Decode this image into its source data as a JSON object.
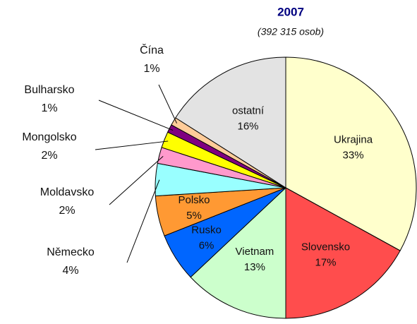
{
  "chart_data": {
    "type": "pie",
    "title": "2007",
    "subtitle": "(392 315 osob)",
    "categories": [
      "Ukrajina",
      "Slovensko",
      "Vietnam",
      "Rusko",
      "Polsko",
      "Německo",
      "Moldavsko",
      "Mongolsko",
      "Bulharsko",
      "Čína",
      "ostatní"
    ],
    "values": [
      33,
      17,
      13,
      6,
      5,
      4,
      2,
      2,
      1,
      1,
      16
    ],
    "value_labels": [
      "33%",
      "17%",
      "13%",
      "6%",
      "5%",
      "4%",
      "2%",
      "2%",
      "1%",
      "1%",
      "16%"
    ],
    "colors": [
      "#ffffcc",
      "#ff4d4d",
      "#ccffcc",
      "#0066ff",
      "#ff9933",
      "#99ffff",
      "#ff99cc",
      "#ffff00",
      "#800080",
      "#ffcc99",
      "#e3e3e3"
    ]
  }
}
